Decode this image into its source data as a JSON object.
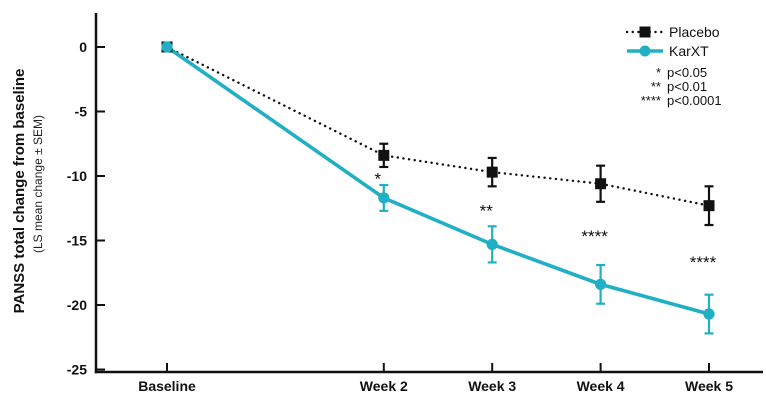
{
  "chart_data": {
    "type": "line",
    "ylabel_main": "PANSS total change from baseline",
    "ylabel_sub": "(LS mean change ± SEM)",
    "xlabel": "",
    "title": "",
    "x_categories": [
      "Baseline",
      "Week 2",
      "Week 3",
      "Week 4",
      "Week 5"
    ],
    "x_weeks": [
      0,
      2,
      3,
      4,
      5
    ],
    "yticks": [
      0,
      -5,
      -10,
      -15,
      -20,
      -25
    ],
    "ylim": [
      -25,
      0
    ],
    "grid": false,
    "legend_position": "top-right",
    "axis_color": "#111111",
    "series": [
      {
        "name": "Placebo",
        "color": "#111111",
        "line_style": "dotted",
        "marker": "square",
        "values": [
          0,
          -8.4,
          -9.7,
          -10.6,
          -12.3
        ],
        "sem": [
          0,
          0.9,
          1.1,
          1.4,
          1.5
        ]
      },
      {
        "name": "KarXT",
        "color": "#20AFC4",
        "line_style": "solid",
        "marker": "circle",
        "values": [
          0,
          -11.7,
          -15.3,
          -18.4,
          -20.7
        ],
        "sem": [
          0,
          1.0,
          1.4,
          1.5,
          1.5
        ]
      }
    ],
    "annotations": [
      {
        "x_index": 1,
        "text": "*"
      },
      {
        "x_index": 2,
        "text": "**"
      },
      {
        "x_index": 3,
        "text": "****"
      },
      {
        "x_index": 4,
        "text": "****"
      }
    ],
    "legend": {
      "significance": [
        {
          "symbol": "*",
          "label": "p<0.05"
        },
        {
          "symbol": "**",
          "label": "p<0.01"
        },
        {
          "symbol": "****",
          "label": "p<0.0001"
        }
      ]
    }
  }
}
